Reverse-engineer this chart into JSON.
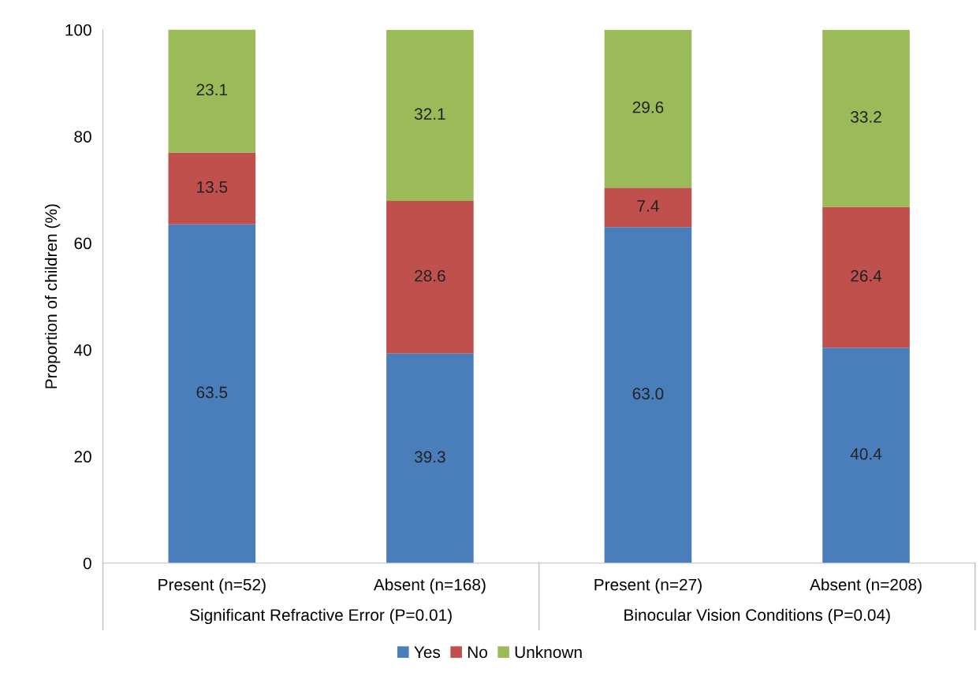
{
  "chart_data": {
    "type": "bar",
    "stacked": true,
    "ylabel": "Proportion of children (%)",
    "categories": [
      "Present (n=52)",
      "Absent (n=168)",
      "Present (n=27)",
      "Absent (n=208)"
    ],
    "annotations": [
      "Significant Refractive Error (P=0.01)",
      "Binocular Vision Conditions (P=0.04)"
    ],
    "series": [
      {
        "name": "Yes",
        "color": "#4a7ebb",
        "values": [
          63.5,
          39.3,
          63.0,
          40.4
        ],
        "value_labels": [
          "63.5",
          "39.3",
          "63.0",
          "40.4"
        ]
      },
      {
        "name": "No",
        "color": "#c0504d",
        "values": [
          13.5,
          28.6,
          7.4,
          26.4
        ],
        "value_labels": [
          "13.5",
          "28.6",
          "7.4",
          "26.4"
        ]
      },
      {
        "name": "Unknown",
        "color": "#9bbb59",
        "values": [
          23.1,
          32.1,
          29.6,
          33.2
        ],
        "value_labels": [
          "23.1",
          "32.1",
          "29.6",
          "33.2"
        ]
      }
    ],
    "ylim": [
      0,
      100
    ],
    "yticks": [
      0,
      20,
      40,
      60,
      80,
      100
    ],
    "grid": false,
    "legend": "bottom"
  }
}
